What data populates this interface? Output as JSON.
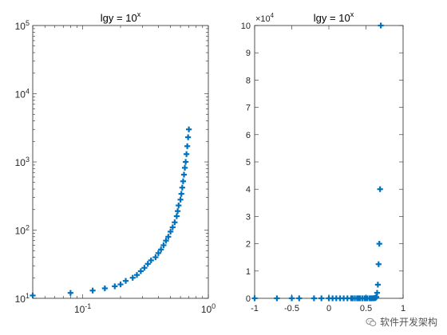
{
  "chart_data": [
    {
      "type": "scatter",
      "title_base": "lgy = 10",
      "title_exp": "x",
      "xscale": "log",
      "yscale": "log",
      "xlim": [
        0.04,
        1
      ],
      "ylim": [
        10,
        100000
      ],
      "marker": "+",
      "xticks": [
        0.1,
        1
      ],
      "xtick_labels": [
        {
          "base": "10",
          "exp": "-1"
        },
        {
          "base": "10",
          "exp": "0"
        }
      ],
      "yticks": [
        10,
        100,
        1000,
        10000,
        100000
      ],
      "ytick_labels": [
        {
          "base": "10",
          "exp": "1"
        },
        {
          "base": "10",
          "exp": "2"
        },
        {
          "base": "10",
          "exp": "3"
        },
        {
          "base": "10",
          "exp": "4"
        },
        {
          "base": "10",
          "exp": "5"
        }
      ],
      "x": [
        0.04,
        0.08,
        0.12,
        0.15,
        0.18,
        0.2,
        0.22,
        0.25,
        0.27,
        0.29,
        0.31,
        0.33,
        0.35,
        0.38,
        0.4,
        0.42,
        0.44,
        0.46,
        0.48,
        0.5,
        0.52,
        0.54,
        0.56,
        0.57,
        0.58,
        0.6,
        0.61,
        0.62,
        0.63,
        0.64,
        0.65,
        0.66,
        0.67,
        0.68,
        0.69,
        0.7
      ],
      "y": [
        11,
        12,
        13,
        14,
        15,
        16,
        18,
        20,
        22,
        25,
        28,
        32,
        36,
        40,
        46,
        52,
        60,
        70,
        80,
        95,
        110,
        130,
        160,
        190,
        230,
        280,
        340,
        420,
        520,
        650,
        820,
        1000,
        1300,
        1700,
        2300,
        3000
      ]
    },
    {
      "type": "scatter",
      "title_base": "lgy = 10",
      "title_exp": "x",
      "xscale": "linear",
      "yscale": "linear",
      "xlim": [
        -1,
        1
      ],
      "ylim": [
        0,
        100000
      ],
      "marker": "+",
      "xtick_labels": [
        "-1",
        "-0.5",
        "0",
        "0.5",
        "1"
      ],
      "ytick_labels": [
        "0",
        "1",
        "2",
        "3",
        "4",
        "5",
        "6",
        "7",
        "8",
        "9",
        "10"
      ],
      "y_multiplier_base": "×10",
      "y_multiplier_exp": "4",
      "x": [
        -1,
        -0.7,
        -0.5,
        -0.4,
        -0.2,
        -0.1,
        0,
        0.05,
        0.1,
        0.15,
        0.2,
        0.25,
        0.3,
        0.32,
        0.35,
        0.38,
        0.4,
        0.42,
        0.45,
        0.48,
        0.5,
        0.52,
        0.55,
        0.57,
        0.58,
        0.6,
        0.61,
        0.62,
        0.63,
        0.64,
        0.65,
        0.66,
        0.67,
        0.68,
        0.69,
        0.7
      ],
      "y": [
        1,
        1,
        1,
        1,
        1,
        1,
        1,
        1,
        1,
        1,
        1,
        1,
        1,
        1,
        1,
        1,
        1,
        1,
        1,
        1,
        1,
        1,
        1,
        1,
        10,
        15,
        30,
        80,
        200,
        500,
        2000,
        5000,
        12500,
        20000,
        40000,
        100000
      ]
    }
  ],
  "watermark": {
    "text": "软件开发架构"
  }
}
